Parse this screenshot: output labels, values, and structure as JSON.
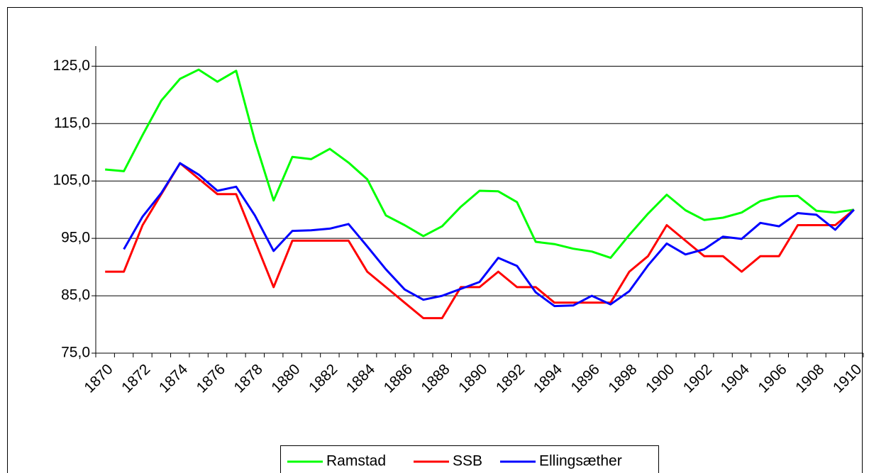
{
  "chart_data": {
    "type": "line",
    "categories": [
      "1870",
      null,
      "1872",
      null,
      "1874",
      null,
      "1876",
      null,
      "1878",
      null,
      "1880",
      null,
      "1882",
      null,
      "1884",
      null,
      "1886",
      null,
      "1888",
      null,
      "1890",
      null,
      "1892",
      null,
      "1894",
      null,
      "1896",
      null,
      "1898",
      null,
      "1900",
      null,
      "1902",
      null,
      "1904",
      null,
      "1906",
      null,
      "1908",
      null,
      "1910"
    ],
    "series": [
      {
        "name": "Ramstad",
        "color": "#00ff00",
        "values": [
          107.0,
          106.7,
          113,
          119,
          122.8,
          124.4,
          122.3,
          124.2,
          112,
          101.6,
          109.2,
          108.8,
          110.6,
          108.2,
          105.3,
          99.0,
          97.3,
          95.4,
          97.1,
          100.5,
          103.3,
          103.2,
          101.3,
          94.4,
          94.0,
          93.2,
          92.7,
          91.6,
          95.6,
          99.3,
          102.6,
          99.9,
          98.2,
          98.6,
          99.5,
          101.5,
          102.3,
          102.4,
          99.8,
          99.5,
          100.0
        ]
      },
      {
        "name": "SSB",
        "color": "#ff0000",
        "values": [
          89.2,
          89.2,
          97.3,
          102.7,
          108.1,
          105.4,
          102.7,
          102.7,
          94.6,
          86.5,
          94.6,
          94.6,
          94.6,
          94.6,
          89.2,
          86.5,
          83.8,
          81.1,
          81.1,
          86.5,
          86.5,
          89.2,
          86.5,
          86.5,
          83.8,
          83.8,
          83.8,
          83.8,
          89.2,
          91.9,
          97.3,
          94.6,
          91.9,
          91.9,
          89.2,
          91.9,
          91.9,
          97.3,
          97.3,
          97.3,
          100.0
        ]
      },
      {
        "name": "Ellingsæther",
        "color": "#0000ff",
        "values": [
          null,
          93.1,
          98.8,
          102.9,
          108.1,
          106.1,
          103.3,
          104.0,
          99.0,
          92.8,
          96.3,
          96.4,
          96.7,
          97.5,
          93.6,
          89.6,
          86.1,
          84.3,
          85.0,
          86.2,
          87.4,
          91.6,
          90.2,
          85.6,
          83.2,
          83.3,
          85.0,
          83.5,
          85.8,
          90.3,
          94.1,
          92.2,
          93.1,
          95.3,
          94.9,
          97.7,
          97.1,
          99.4,
          99.1,
          96.5,
          100.0
        ]
      }
    ],
    "ylim": [
      75,
      128.5
    ],
    "yticks": [
      {
        "value": 75,
        "label": "75,0"
      },
      {
        "value": 85,
        "label": "85,0"
      },
      {
        "value": 95,
        "label": "95,0"
      },
      {
        "value": 105,
        "label": "105,0"
      },
      {
        "value": 115,
        "label": "115,0"
      },
      {
        "value": 125,
        "label": "125,0"
      }
    ],
    "grid": true,
    "legend": "bottom"
  }
}
